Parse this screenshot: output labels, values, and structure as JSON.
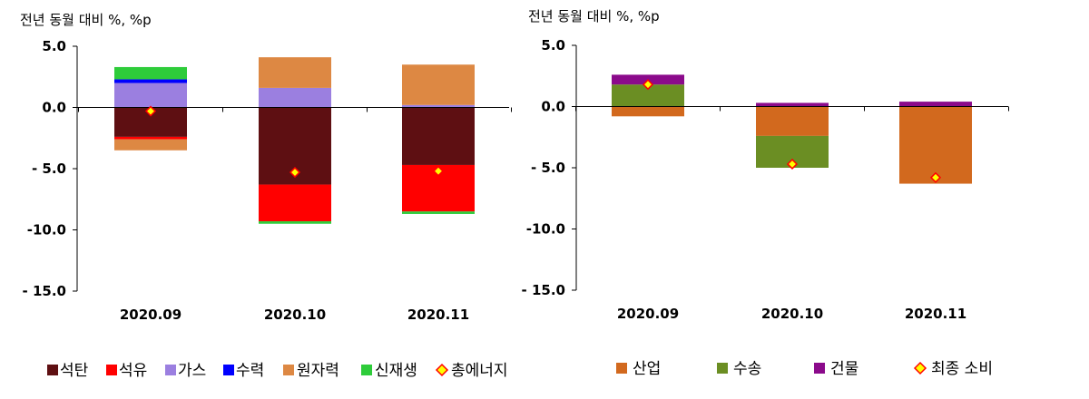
{
  "chart_data": [
    {
      "type": "bar",
      "stacked": true,
      "unit_label": "전년 동월 대비 %, %p",
      "ylim": [
        -15,
        5
      ],
      "yticks": [
        "5.0",
        "0.0",
        "- 5.0",
        "-10.0",
        "- 15.0"
      ],
      "categories": [
        "2020.09",
        "2020.10",
        "2020.11"
      ],
      "series": [
        {
          "name": "석탄",
          "color": "#5e0f12",
          "values": [
            -2.4,
            -6.3,
            -4.7
          ]
        },
        {
          "name": "석유",
          "color": "#ff0000",
          "values": [
            -0.2,
            -3.0,
            -3.8
          ]
        },
        {
          "name": "가스",
          "color": "#9b7fe0",
          "values": [
            2.0,
            1.6,
            0.2
          ]
        },
        {
          "name": "수력",
          "color": "#0000ff",
          "values": [
            0.3,
            0.0,
            0.0
          ]
        },
        {
          "name": "원자력",
          "color": "#dd8843",
          "values": [
            -0.9,
            2.5,
            3.3
          ]
        },
        {
          "name": "신재생",
          "color": "#2ecc3a",
          "values": [
            1.0,
            -0.2,
            -0.2
          ]
        }
      ],
      "total": {
        "name": "총에너지",
        "values": [
          -0.3,
          -5.3,
          -5.2
        ]
      },
      "legend_position": "bottom",
      "grid": false
    },
    {
      "type": "bar",
      "stacked": true,
      "unit_label": "전년 동월 대비 %, %p",
      "ylim": [
        -15,
        5
      ],
      "yticks": [
        "5.0",
        "0.0",
        "- 5.0",
        "-10.0",
        "- 15.0"
      ],
      "categories": [
        "2020.09",
        "2020.10",
        "2020.11"
      ],
      "series": [
        {
          "name": "산업",
          "color": "#d2691e",
          "values": [
            -0.8,
            -2.4,
            -6.3
          ]
        },
        {
          "name": "수송",
          "color": "#6b8e23",
          "values": [
            1.8,
            -2.6,
            0.0
          ]
        },
        {
          "name": "건물",
          "color": "#8b0a8b",
          "values": [
            0.8,
            0.3,
            0.4
          ]
        }
      ],
      "total": {
        "name": "최종 소비",
        "values": [
          1.8,
          -4.7,
          -5.8
        ]
      },
      "legend_position": "bottom",
      "grid": false
    }
  ]
}
